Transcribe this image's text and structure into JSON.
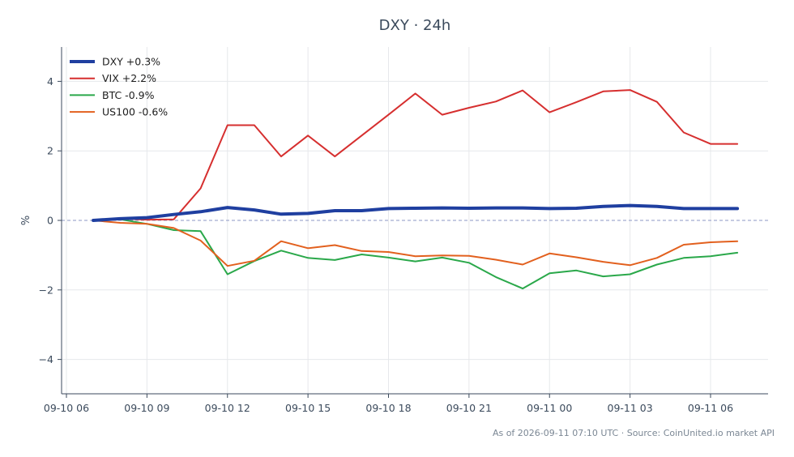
{
  "chart_data": {
    "type": "line",
    "title": "DXY · 24h",
    "ylabel": "%",
    "xlabel": "",
    "ylim": [
      -5,
      5
    ],
    "yticks": [
      -4,
      -2,
      0,
      2,
      4
    ],
    "x_start": "2026-09-10 07:00",
    "x_ticks": [
      "09-10 06",
      "09-10 09",
      "09-10 12",
      "09-10 15",
      "09-10 18",
      "09-10 21",
      "09-11 00",
      "09-11 03",
      "09-11 06"
    ],
    "grid": true,
    "zero_line": true,
    "legend_position": "top-left",
    "x": [
      "09-10 07",
      "09-10 08",
      "09-10 09",
      "09-10 10",
      "09-10 11",
      "09-10 12",
      "09-10 13",
      "09-10 14",
      "09-10 15",
      "09-10 16",
      "09-10 17",
      "09-10 18",
      "09-10 19",
      "09-10 20",
      "09-10 21",
      "09-10 22",
      "09-10 23",
      "09-11 00",
      "09-11 01",
      "09-11 02",
      "09-11 03",
      "09-11 04",
      "09-11 05",
      "09-11 06",
      "09-11 07"
    ],
    "series": [
      {
        "name": "DXY +0.3%",
        "color": "#1f3fa0",
        "width": 4,
        "values": [
          0.0,
          0.05,
          0.08,
          0.17,
          0.25,
          0.37,
          0.3,
          0.18,
          0.2,
          0.28,
          0.28,
          0.34,
          0.35,
          0.36,
          0.35,
          0.36,
          0.36,
          0.34,
          0.35,
          0.4,
          0.43,
          0.4,
          0.34,
          0.34,
          0.34
        ]
      },
      {
        "name": "VIX +2.2%",
        "color": "#d62f2f",
        "width": 2,
        "values": [
          0.0,
          0.05,
          0.02,
          0.03,
          0.92,
          2.74,
          2.74,
          1.84,
          2.44,
          1.84,
          2.44,
          3.04,
          3.65,
          3.04,
          3.24,
          3.42,
          3.74,
          3.11,
          3.4,
          3.71,
          3.75,
          3.41,
          2.53,
          2.2,
          2.2
        ]
      },
      {
        "name": "BTC -0.9%",
        "color": "#2aa84a",
        "width": 2,
        "values": [
          0.0,
          0.03,
          -0.1,
          -0.28,
          -0.31,
          -1.55,
          -1.17,
          -0.87,
          -1.08,
          -1.14,
          -0.98,
          -1.07,
          -1.18,
          -1.07,
          -1.22,
          -1.63,
          -1.96,
          -1.52,
          -1.44,
          -1.61,
          -1.55,
          -1.27,
          -1.08,
          -1.03,
          -0.93
        ]
      },
      {
        "name": "US100 -0.6%",
        "color": "#e2601e",
        "width": 2,
        "values": [
          0.0,
          -0.07,
          -0.1,
          -0.22,
          -0.58,
          -1.31,
          -1.16,
          -0.6,
          -0.8,
          -0.71,
          -0.88,
          -0.91,
          -1.03,
          -1.01,
          -1.02,
          -1.13,
          -1.27,
          -0.95,
          -1.06,
          -1.19,
          -1.29,
          -1.08,
          -0.7,
          -0.63,
          -0.6
        ]
      }
    ],
    "footer": "As of 2026-09-11 07:10 UTC · Source: CoinUnited.io market API"
  }
}
